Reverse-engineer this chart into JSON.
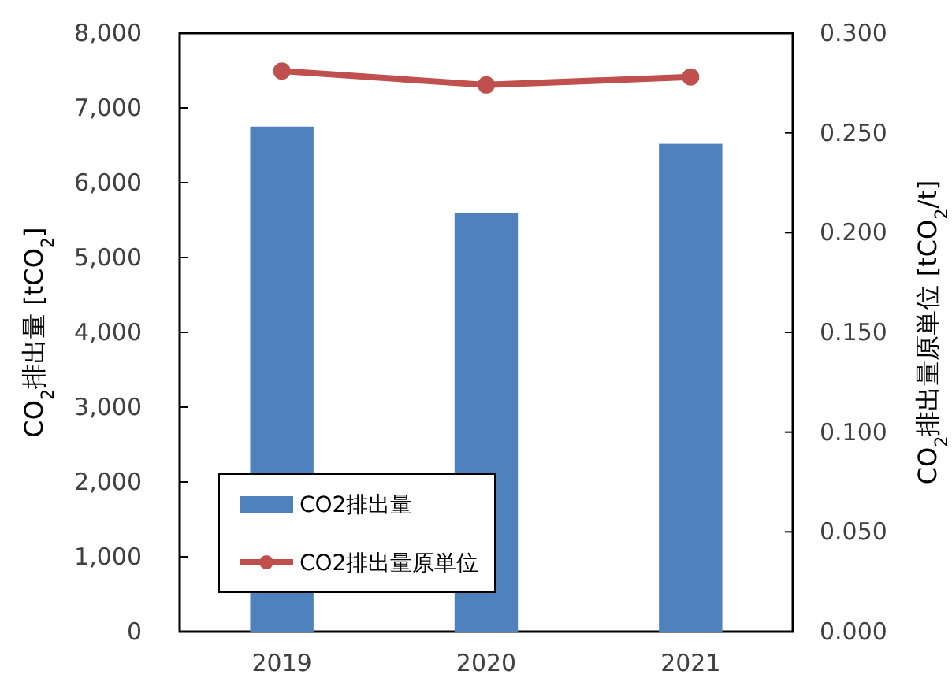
{
  "chart_data": {
    "type": "bar",
    "categories": [
      "2019",
      "2020",
      "2021"
    ],
    "series": [
      {
        "name": "CO2排出量",
        "color": "#4f81bd",
        "values": [
          6750,
          5600,
          6520
        ]
      },
      {
        "name": "CO2排出量原単位",
        "type": "line",
        "axis": "y2",
        "color": "#c0504d",
        "values": [
          0.281,
          0.274,
          0.278
        ]
      }
    ],
    "ylabel": "CO$_{2}$排出量 [tCO$_{2}$]",
    "y2label": "CO$_{2}$排出量原単位 [tCO$_{2}$/t]",
    "ylim": [
      0,
      8000
    ],
    "yticks": [
      {
        "value": 0,
        "label": "0"
      },
      {
        "value": 1000,
        "label": "1,000"
      },
      {
        "value": 2000,
        "label": "2,000"
      },
      {
        "value": 3000,
        "label": "3,000"
      },
      {
        "value": 4000,
        "label": "4,000"
      },
      {
        "value": 5000,
        "label": "5,000"
      },
      {
        "value": 6000,
        "label": "6,000"
      },
      {
        "value": 7000,
        "label": "7,000"
      },
      {
        "value": 8000,
        "label": "8,000"
      }
    ],
    "y2lim": [
      0,
      0.3
    ],
    "y2ticks": [
      {
        "value": 0,
        "label": "0.000"
      },
      {
        "value": 0.05,
        "label": "0.050"
      },
      {
        "value": 0.1,
        "label": "0.100"
      },
      {
        "value": 0.15,
        "label": "0.150"
      },
      {
        "value": 0.2,
        "label": "0.200"
      },
      {
        "value": 0.25,
        "label": "0.250"
      },
      {
        "value": 0.3,
        "label": "0.300"
      }
    ],
    "legend": "bottom left",
    "marker": "circle"
  }
}
